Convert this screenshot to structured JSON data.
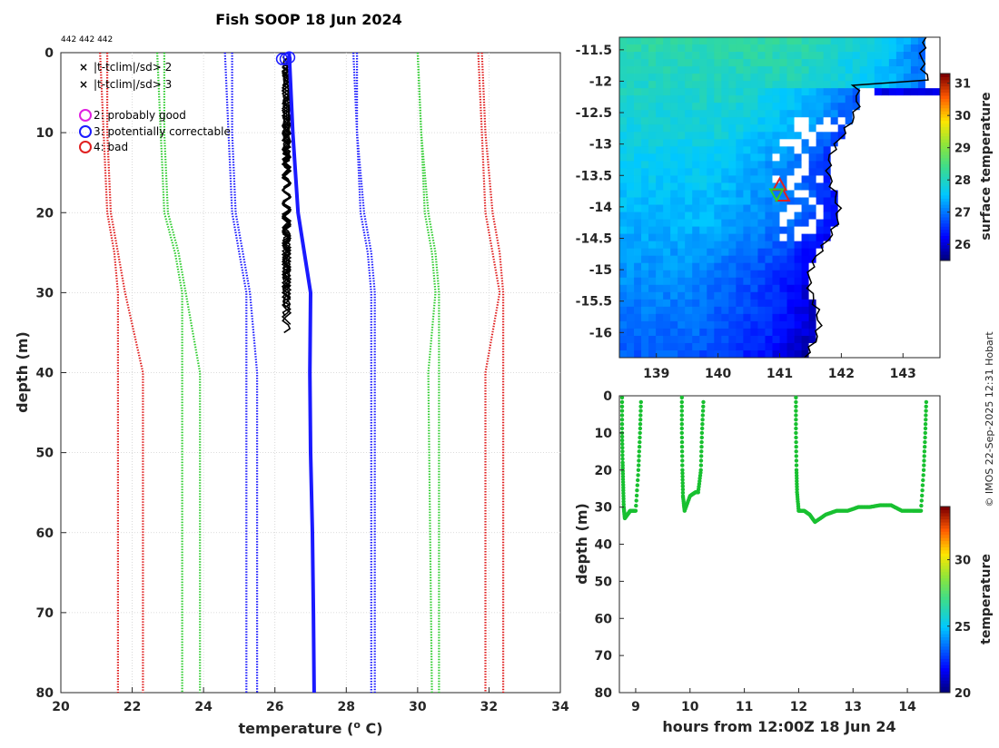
{
  "title": "Fish SOOP 18 Jun 2024",
  "ids_label": "442 442 442",
  "copyright": "© IMOS 22-Sep-2025 12:31 Hobart",
  "colors": {
    "green": "#2ecc2e",
    "red": "#e02020",
    "blue": "#1a1aff",
    "black": "#000000",
    "magenta": "#e020e0",
    "timeseries": "#18c030"
  },
  "chart_data": [
    {
      "id": "profile",
      "type": "line",
      "xlabel": "temperature (o C)",
      "xlabel_main": "temperature (",
      "xlabel_sup": "o",
      "xlabel_end": " C)",
      "ylabel": "depth (m)",
      "xlim": [
        20,
        34
      ],
      "ylim": [
        0,
        80
      ],
      "xticks": [
        20,
        22,
        24,
        26,
        28,
        30,
        32,
        34
      ],
      "yticks": [
        0,
        10,
        20,
        30,
        40,
        50,
        60,
        70,
        80
      ],
      "legend": [
        {
          "marker": "x",
          "color": "#2ecc2e",
          "label": "|t-tclim|/sd> 2"
        },
        {
          "marker": "x",
          "color": "#e02020",
          "label": "|t-tclim|/sd> 3"
        },
        {
          "marker": "o",
          "color": "#e020e0",
          "label": "2: probably good"
        },
        {
          "marker": "o",
          "color": "#1a1aff",
          "label": "3: potentially correctable"
        },
        {
          "marker": "o",
          "color": "#e02020",
          "label": "4: bad"
        }
      ],
      "clim_lines": [
        {
          "name": "clim -3sd outer",
          "color": "#e02020",
          "depth": [
            0,
            10,
            20,
            25,
            30,
            80
          ],
          "temp": [
            21.1,
            21.2,
            21.3,
            21.5,
            21.6,
            21.6
          ]
        },
        {
          "name": "clim -3sd inner",
          "color": "#e02020",
          "depth": [
            0,
            10,
            20,
            25,
            30,
            40,
            80
          ],
          "temp": [
            21.3,
            21.3,
            21.4,
            21.6,
            21.8,
            22.3,
            22.3
          ]
        },
        {
          "name": "clim -2sd outer",
          "color": "#2ecc2e",
          "depth": [
            0,
            10,
            20,
            25,
            30,
            80
          ],
          "temp": [
            22.7,
            22.8,
            22.9,
            23.2,
            23.4,
            23.4
          ]
        },
        {
          "name": "clim -2sd inner",
          "color": "#2ecc2e",
          "depth": [
            0,
            10,
            20,
            25,
            30,
            40,
            80
          ],
          "temp": [
            22.9,
            22.9,
            23.0,
            23.3,
            23.5,
            23.9,
            23.9
          ]
        },
        {
          "name": "clim mean-1 outer",
          "color": "#1a1aff",
          "depth": [
            0,
            10,
            20,
            25,
            30,
            80
          ],
          "temp": [
            24.6,
            24.7,
            24.8,
            25.0,
            25.2,
            25.2
          ]
        },
        {
          "name": "clim mean-1 inner",
          "color": "#1a1aff",
          "depth": [
            0,
            10,
            20,
            25,
            30,
            40,
            80
          ],
          "temp": [
            24.8,
            24.8,
            24.9,
            25.1,
            25.3,
            25.5,
            25.5
          ]
        },
        {
          "name": "clim mean+1 inner",
          "color": "#1a1aff",
          "depth": [
            0,
            10,
            20,
            25,
            30,
            40,
            80
          ],
          "temp": [
            28.2,
            28.3,
            28.4,
            28.6,
            28.7,
            28.7,
            28.7
          ]
        },
        {
          "name": "clim mean+1 outer",
          "color": "#1a1aff",
          "depth": [
            0,
            10,
            20,
            25,
            30,
            40,
            80
          ],
          "temp": [
            28.3,
            28.3,
            28.5,
            28.7,
            28.8,
            28.8,
            28.8
          ]
        },
        {
          "name": "clim +2sd inner",
          "color": "#2ecc2e",
          "depth": [
            0,
            10,
            20,
            25,
            30,
            40,
            80
          ],
          "temp": [
            30.0,
            30.1,
            30.2,
            30.4,
            30.5,
            30.3,
            30.4
          ]
        },
        {
          "name": "clim +2sd outer",
          "color": "#2ecc2e",
          "depth": [
            0,
            10,
            20,
            25,
            30,
            40,
            80
          ],
          "temp": [
            30.0,
            30.1,
            30.3,
            30.5,
            30.6,
            30.6,
            30.6
          ]
        },
        {
          "name": "clim +3sd inner",
          "color": "#e02020",
          "depth": [
            0,
            10,
            20,
            25,
            30,
            40,
            80
          ],
          "temp": [
            31.7,
            31.8,
            31.9,
            32.1,
            32.3,
            31.9,
            31.9
          ]
        },
        {
          "name": "clim +3sd outer",
          "color": "#e02020",
          "depth": [
            0,
            10,
            20,
            25,
            30,
            40,
            80
          ],
          "temp": [
            31.8,
            31.9,
            32.1,
            32.3,
            32.4,
            32.4,
            32.4
          ]
        }
      ],
      "profile_line": {
        "name": "profile",
        "color": "#1a1aff",
        "depth": [
          0,
          10,
          20,
          30,
          40,
          50,
          60,
          70,
          80
        ],
        "temp": [
          26.4,
          26.5,
          26.65,
          27.0,
          26.98,
          27.0,
          27.05,
          27.08,
          27.1
        ]
      },
      "measured": {
        "name": "measured casts",
        "color": "#000000",
        "depth_min": 0.5,
        "depth_max": 35,
        "temp_min": 26.2,
        "temp_max": 26.45
      },
      "flag_circles": [
        {
          "temp": 26.2,
          "depth": 0.8
        },
        {
          "temp": 26.3,
          "depth": 0.8
        },
        {
          "temp": 26.4,
          "depth": 0.6
        }
      ]
    },
    {
      "id": "sst_map",
      "type": "heatmap",
      "xlim": [
        138.4,
        143.6
      ],
      "ylim": [
        -16.4,
        -11.3
      ],
      "xticks": [
        139,
        140,
        141,
        142,
        143
      ],
      "yticks": [
        -11.5,
        -12,
        -12.5,
        -13,
        -13.5,
        -14,
        -14.5,
        -15,
        -15.5,
        -16
      ],
      "colorbar_label": "surface temperature",
      "clim": [
        25.5,
        31.3
      ],
      "colorbar_ticks": [
        26,
        27,
        28,
        29,
        30,
        31
      ],
      "markers": [
        {
          "type": "triangle",
          "color": "#e02020",
          "lon": 141.0,
          "lat": -13.65
        },
        {
          "type": "triangle",
          "color": "#e02020",
          "lon": 141.05,
          "lat": -13.82
        },
        {
          "type": "triangle-down",
          "color": "#2ecc2e",
          "lon": 140.95,
          "lat": -13.8
        }
      ]
    },
    {
      "id": "timeseries",
      "type": "scatter",
      "xlabel": "hours from 12:00Z 18 Jun 24",
      "ylabel": "depth (m)",
      "xlim": [
        8.7,
        14.6
      ],
      "ylim": [
        0,
        80
      ],
      "xticks": [
        9,
        10,
        11,
        12,
        13,
        14
      ],
      "yticks": [
        0,
        10,
        20,
        30,
        40,
        50,
        60,
        70,
        80
      ],
      "colorbar_label": "temperature",
      "clim": [
        20,
        34
      ],
      "colorbar_ticks": [
        20,
        25,
        30
      ],
      "point_color": "#18c030",
      "segments": [
        {
          "t": [
            8.75,
            8.75,
            8.76,
            8.77,
            8.78,
            8.8,
            8.85,
            8.9,
            9.0,
            9.05,
            9.08,
            9.1
          ],
          "d": [
            0.5,
            10,
            18,
            24,
            30,
            33,
            32,
            31,
            31,
            20,
            10,
            0.5
          ]
        },
        {
          "t": [
            9.85,
            9.85,
            9.86,
            9.87,
            9.9,
            10.0,
            10.1,
            10.15,
            10.2,
            10.22,
            10.25
          ],
          "d": [
            0.5,
            10,
            20,
            27,
            31,
            27,
            26,
            26,
            20,
            10,
            0.5
          ]
        },
        {
          "t": [
            11.95,
            11.95,
            11.96,
            11.97,
            12.0,
            12.1,
            12.2,
            12.3,
            12.5,
            12.7,
            12.9,
            13.1,
            13.3,
            13.5,
            13.7,
            13.9,
            14.1,
            14.25,
            14.3,
            14.33,
            14.35
          ],
          "d": [
            0.5,
            10,
            20,
            26,
            31,
            31,
            32,
            34,
            32,
            31,
            31,
            30,
            30,
            29.5,
            29.5,
            31,
            31,
            31,
            20,
            10,
            0.5
          ]
        }
      ]
    }
  ]
}
